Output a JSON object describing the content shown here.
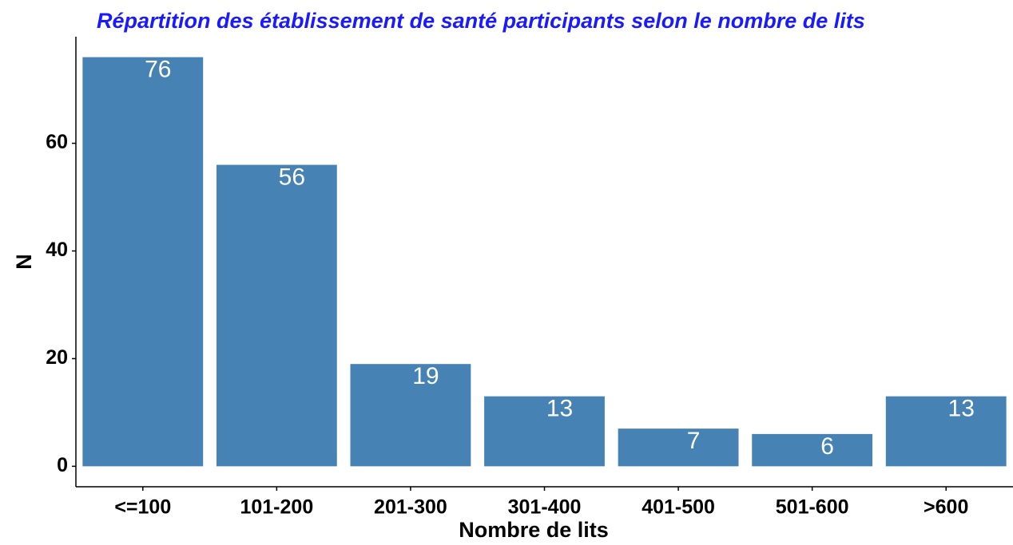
{
  "chart_data": {
    "type": "bar",
    "title": "Répartition des établissement de santé participants selon le nombre de lits",
    "x_label": "Nombre de lits",
    "y_label": "N",
    "categories": [
      "<=100",
      "101-200",
      "201-300",
      "301-400",
      "401-500",
      "501-600",
      ">600"
    ],
    "values": [
      76,
      56,
      19,
      13,
      7,
      6,
      13
    ],
    "color": "#4682b4",
    "ylim": [
      -3.8,
      79.8
    ],
    "yticks": [
      0,
      20,
      40,
      60
    ],
    "grid": false
  }
}
